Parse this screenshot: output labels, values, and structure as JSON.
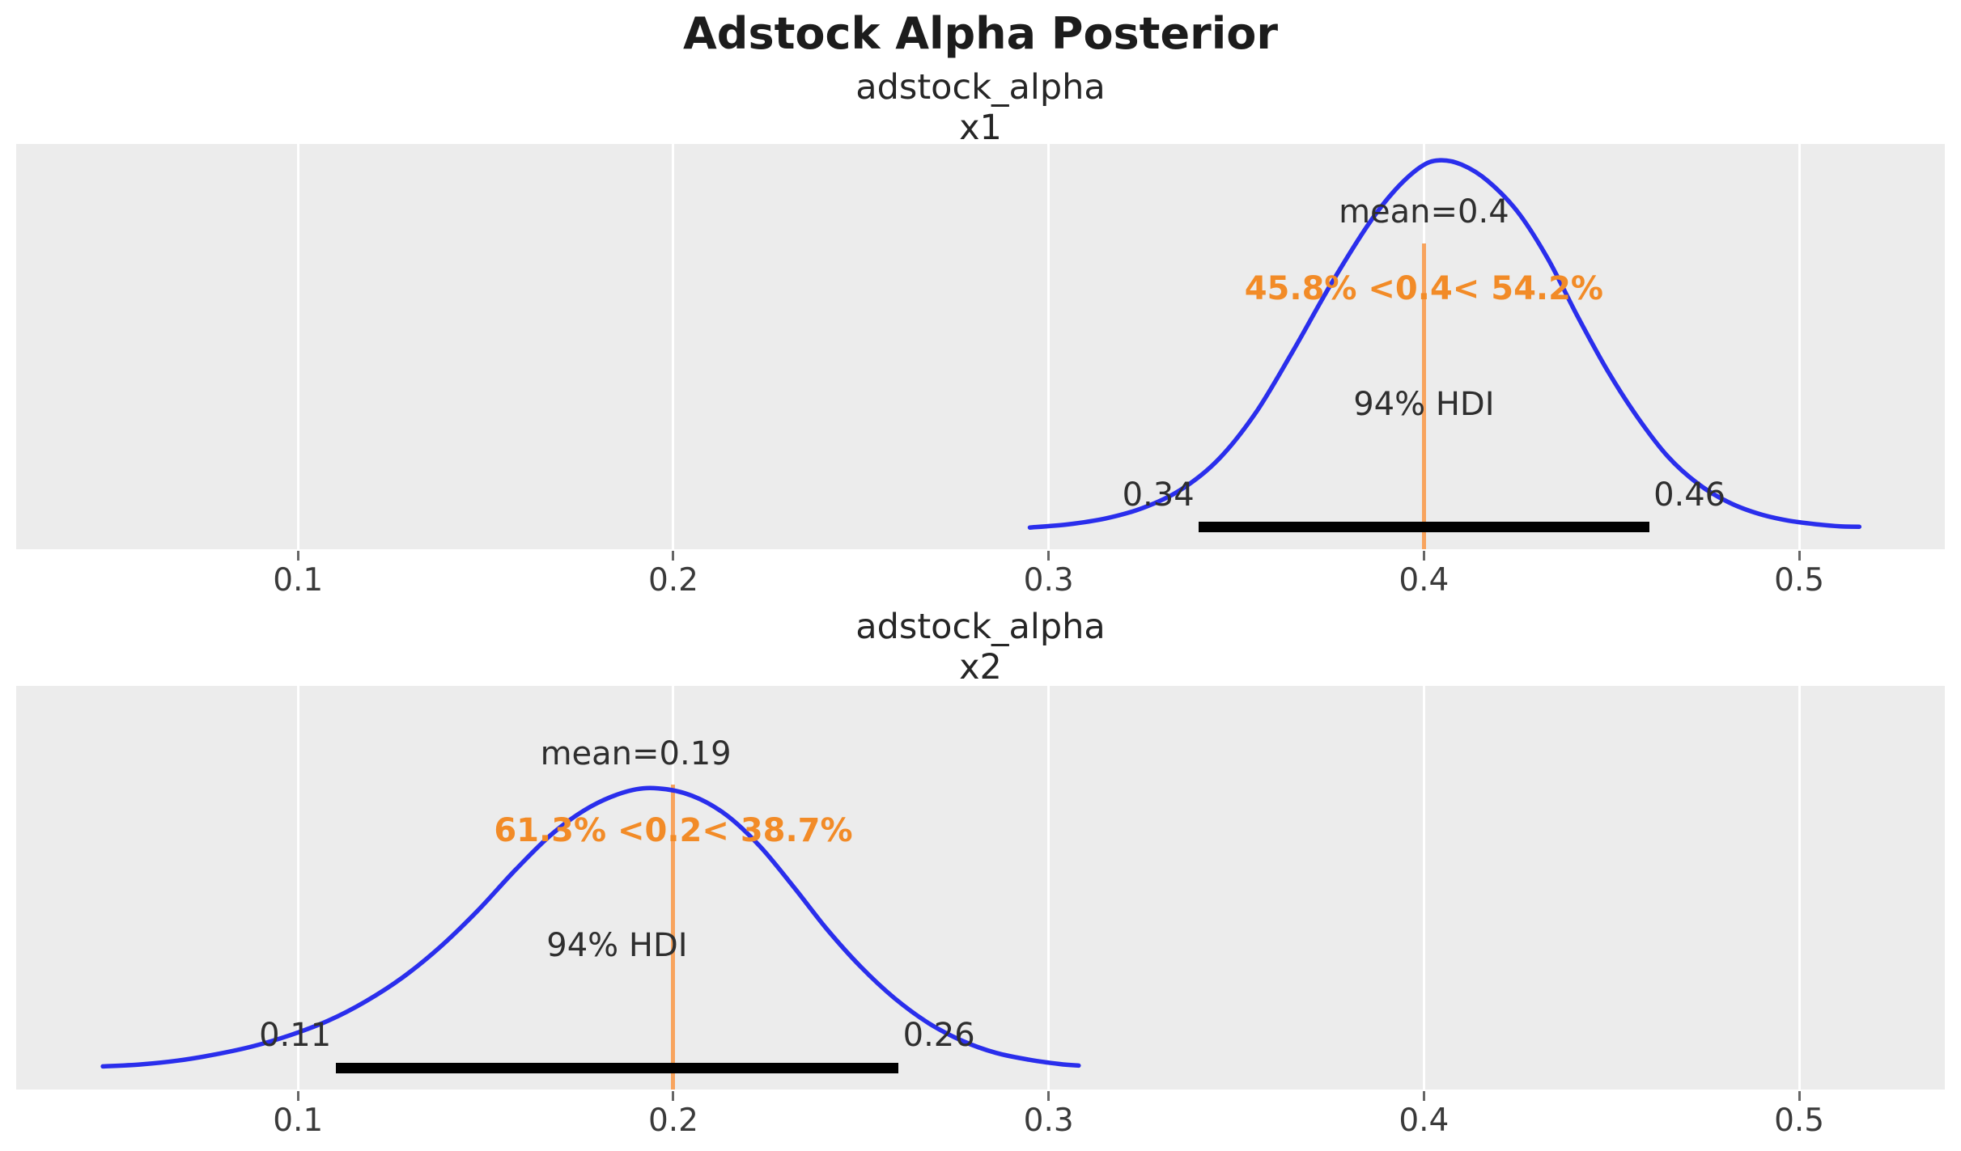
{
  "title": "Adstock Alpha Posterior",
  "colors": {
    "curve": "#2a2eec",
    "ref_line": "#f8a45e",
    "pct_text": "#f28b27",
    "panel_bg": "#ececec",
    "gridline": "#ffffff",
    "hdi_bar": "#000000",
    "text": "#2e2e2e"
  },
  "chart_data": {
    "type": "area",
    "kind": "posterior_kde",
    "title": "Adstock Alpha Posterior",
    "grid": true,
    "xlim": [
      0.0249,
      0.5388
    ],
    "x_ticks": [
      0.1,
      0.2,
      0.3,
      0.4,
      0.5
    ],
    "x_tick_labels": [
      "0.1",
      "0.2",
      "0.3",
      "0.4",
      "0.5"
    ],
    "panels": [
      {
        "title_line1": "adstock_alpha",
        "title_line2": "x1",
        "mean": 0.4,
        "mean_label": "mean=0.4",
        "ref_value": 0.4,
        "pct_label": "45.8% <0.4< 54.2%",
        "pct_below": "45.8%",
        "pct_above": "54.2%",
        "hdi_label": "94% HDI",
        "hdi": [
          0.34,
          0.46
        ],
        "hdi_lo_label": "0.34",
        "hdi_hi_label": "0.46",
        "curve_points": [
          [
            0.295,
            0.012
          ],
          [
            0.305,
            0.02
          ],
          [
            0.315,
            0.035
          ],
          [
            0.325,
            0.062
          ],
          [
            0.335,
            0.108
          ],
          [
            0.345,
            0.185
          ],
          [
            0.355,
            0.305
          ],
          [
            0.365,
            0.465
          ],
          [
            0.375,
            0.635
          ],
          [
            0.385,
            0.79
          ],
          [
            0.392,
            0.878
          ],
          [
            0.399,
            0.94
          ],
          [
            0.404,
            0.958
          ],
          [
            0.41,
            0.947
          ],
          [
            0.417,
            0.905
          ],
          [
            0.425,
            0.825
          ],
          [
            0.433,
            0.705
          ],
          [
            0.441,
            0.555
          ],
          [
            0.449,
            0.415
          ],
          [
            0.457,
            0.295
          ],
          [
            0.465,
            0.195
          ],
          [
            0.473,
            0.125
          ],
          [
            0.481,
            0.078
          ],
          [
            0.489,
            0.048
          ],
          [
            0.497,
            0.03
          ],
          [
            0.505,
            0.02
          ],
          [
            0.511,
            0.015
          ],
          [
            0.516,
            0.014
          ]
        ]
      },
      {
        "title_line1": "adstock_alpha",
        "title_line2": "x2",
        "mean": 0.19,
        "mean_label": "mean=0.19",
        "ref_value": 0.2,
        "pct_label": "61.3% <0.2< 38.7%",
        "pct_below": "61.3%",
        "pct_above": "38.7%",
        "hdi_label": "94% HDI",
        "hdi": [
          0.11,
          0.26
        ],
        "hdi_lo_label": "0.11",
        "hdi_hi_label": "0.26",
        "curve_points": [
          [
            0.048,
            0.016
          ],
          [
            0.058,
            0.021
          ],
          [
            0.068,
            0.031
          ],
          [
            0.078,
            0.047
          ],
          [
            0.088,
            0.068
          ],
          [
            0.098,
            0.097
          ],
          [
            0.108,
            0.134
          ],
          [
            0.118,
            0.184
          ],
          [
            0.128,
            0.247
          ],
          [
            0.138,
            0.326
          ],
          [
            0.148,
            0.42
          ],
          [
            0.158,
            0.525
          ],
          [
            0.168,
            0.62
          ],
          [
            0.178,
            0.688
          ],
          [
            0.188,
            0.728
          ],
          [
            0.196,
            0.735
          ],
          [
            0.205,
            0.716
          ],
          [
            0.214,
            0.667
          ],
          [
            0.223,
            0.586
          ],
          [
            0.232,
            0.481
          ],
          [
            0.241,
            0.37
          ],
          [
            0.25,
            0.273
          ],
          [
            0.259,
            0.192
          ],
          [
            0.268,
            0.128
          ],
          [
            0.277,
            0.082
          ],
          [
            0.286,
            0.051
          ],
          [
            0.295,
            0.033
          ],
          [
            0.303,
            0.022
          ],
          [
            0.308,
            0.018
          ]
        ]
      }
    ]
  }
}
